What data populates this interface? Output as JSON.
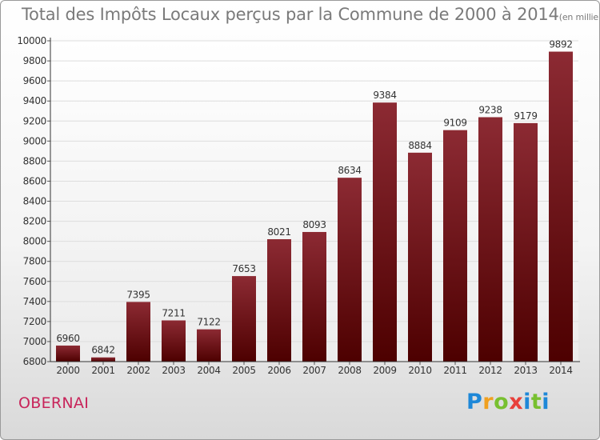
{
  "chart_data": {
    "type": "bar",
    "title": "Total des Impôts Locaux perçus par la Commune de 2000 à 2014",
    "unit_note": "(en milliers d'€)",
    "categories": [
      "2000",
      "2001",
      "2002",
      "2003",
      "2004",
      "2005",
      "2006",
      "2007",
      "2008",
      "2009",
      "2010",
      "2011",
      "2012",
      "2013",
      "2014"
    ],
    "values": [
      6960,
      6842,
      7395,
      7211,
      7122,
      7653,
      8021,
      8093,
      8634,
      9384,
      8884,
      9109,
      9238,
      9179,
      9892
    ],
    "ylim": [
      6800,
      10000
    ],
    "yticks": [
      6800,
      7000,
      7200,
      7400,
      7600,
      7800,
      8000,
      8200,
      8400,
      8600,
      8800,
      9000,
      9200,
      9400,
      9600,
      9800,
      10000
    ],
    "xlabel": "",
    "ylabel": "",
    "bar_color_top": "#8c2a33",
    "bar_color_bottom": "#4d0000"
  },
  "commune": "OBERNAI",
  "brand": {
    "letters": [
      "P",
      "r",
      "o",
      "x",
      "i",
      "t",
      "i"
    ],
    "colors": [
      "#1e88d8",
      "#f0a020",
      "#78c030",
      "#e8403a",
      "#1e88d8",
      "#78c030",
      "#1e88d8"
    ]
  }
}
